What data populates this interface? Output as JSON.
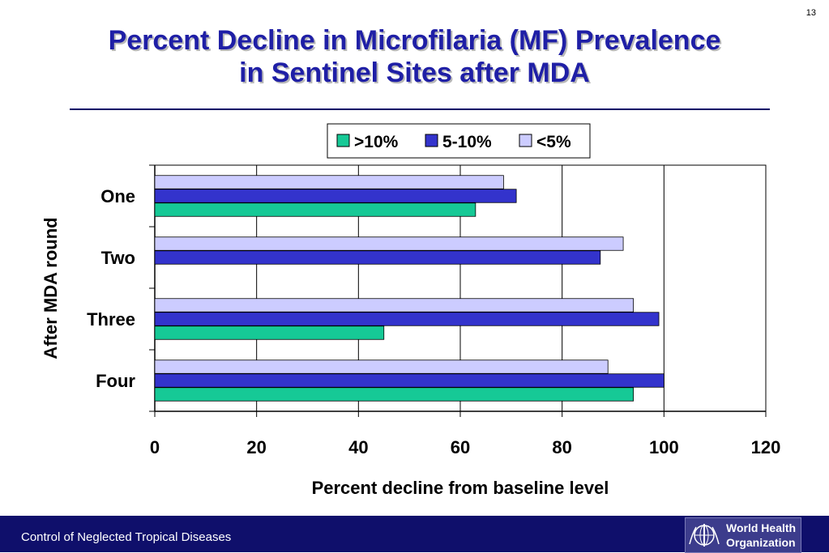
{
  "slide_number": "13",
  "title_lines": [
    "Percent Decline in Microfilaria (MF) Prevalence",
    "in Sentinel Sites after MDA"
  ],
  "footer_text": "Control of Neglected Tropical Diseases",
  "logo": {
    "line1": "World Health",
    "line2": "Organization",
    "emblem_icon": "who-emblem-icon"
  },
  "colors": {
    "title": "#1f1fa6",
    "footer_bg": "#0f0f6b",
    "s1": "#16c996",
    "s2": "#3333cc",
    "s3": "#ccccff"
  },
  "chart_data": {
    "type": "bar",
    "orientation": "horizontal",
    "categories": [
      "One",
      "Two",
      "Three",
      "Four"
    ],
    "series": [
      {
        "name": ">10%",
        "values": [
          63,
          null,
          45,
          94
        ]
      },
      {
        "name": "5-10%",
        "values": [
          71,
          87.5,
          99,
          100
        ]
      },
      {
        "name": "<5%",
        "values": [
          68.5,
          92,
          94,
          89
        ]
      }
    ],
    "xlabel": "Percent decline from baseline  level",
    "ylabel": "After MDA round",
    "xlim": [
      0,
      120
    ],
    "x_ticks": [
      0,
      20,
      40,
      60,
      80,
      100,
      120
    ],
    "grid": "vertical",
    "legend": "top-right"
  }
}
